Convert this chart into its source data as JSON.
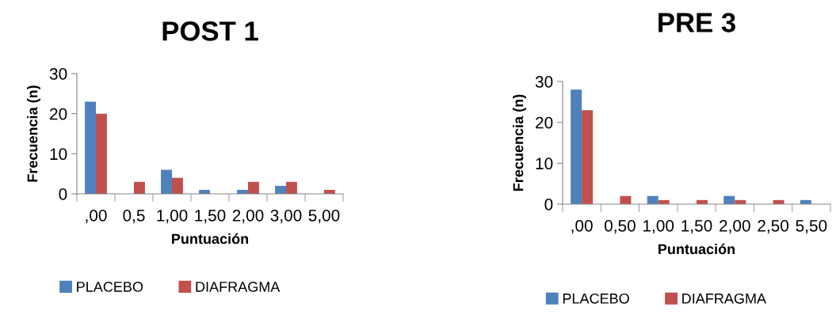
{
  "chart_data": [
    {
      "type": "bar",
      "title": "POST 1",
      "xlabel": "Puntuación",
      "ylabel": "Frecuencia (n)",
      "categories": [
        ",00",
        "0,5",
        "1,00",
        "1,50",
        "2,00",
        "3,00",
        "5,00"
      ],
      "series": [
        {
          "name": "PLACEBO",
          "color": "#4f81bd",
          "values": [
            23,
            0,
            6,
            1,
            1,
            2,
            0
          ]
        },
        {
          "name": "DIAFRAGMA",
          "color": "#c0504d",
          "values": [
            20,
            3,
            4,
            0,
            3,
            3,
            1
          ]
        }
      ],
      "ylim": [
        0,
        30
      ],
      "yticks": [
        0,
        10,
        20,
        30
      ],
      "grid": false,
      "legend": "bottom"
    },
    {
      "type": "bar",
      "title": "PRE 3",
      "xlabel": "Puntuación",
      "ylabel": "Frecuencia (n)",
      "categories": [
        ",00",
        "0,50",
        "1,00",
        "1,50",
        "2,00",
        "2,50",
        "5,50"
      ],
      "series": [
        {
          "name": "PLACEBO",
          "color": "#4f81bd",
          "values": [
            28,
            0,
            2,
            0,
            2,
            0,
            1
          ]
        },
        {
          "name": "DIAFRAGMA",
          "color": "#c0504d",
          "values": [
            23,
            2,
            1,
            1,
            1,
            1,
            0
          ]
        }
      ],
      "ylim": [
        0,
        30
      ],
      "yticks": [
        0,
        10,
        20,
        30
      ],
      "grid": false,
      "legend": "bottom"
    }
  ]
}
